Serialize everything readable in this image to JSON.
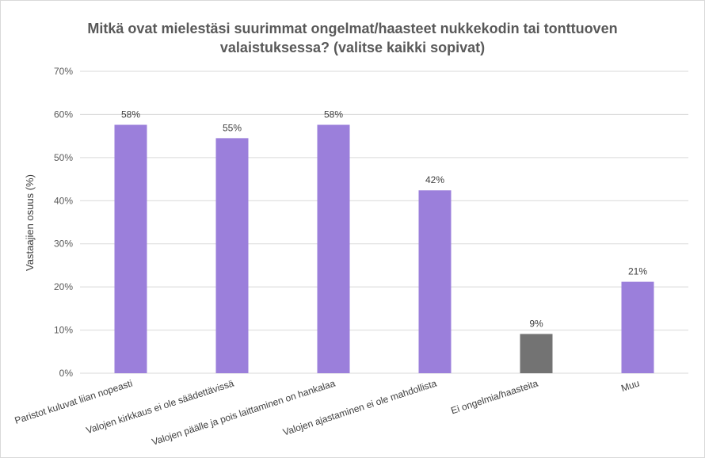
{
  "chart_data": {
    "type": "bar",
    "title_lines": [
      "Mitkä ovat mielestäsi suurimmat ongelmat/haasteet nukkekodin tai tonttuoven",
      "valaistuksessa? (valitse kaikki sopivat)"
    ],
    "xlabel": "",
    "ylabel": "Vastaajien osuus (%)",
    "ylim": [
      0,
      70
    ],
    "yticks": [
      0,
      10,
      20,
      30,
      40,
      50,
      60,
      70
    ],
    "ytick_labels": [
      "0%",
      "10%",
      "20%",
      "30%",
      "40%",
      "50%",
      "60%",
      "70%"
    ],
    "categories": [
      "Paristot kuluvat liian nopeasti",
      "Valojen kirkkaus ei ole säädettävissä",
      "Valojen päälle ja pois laittaminen on hankalaa",
      "Valojen ajastaminen ei ole mahdollista",
      "Ei ongelmia/haasteita",
      "Muu"
    ],
    "values": [
      57.6,
      54.5,
      57.6,
      42.4,
      9.1,
      21.2
    ],
    "data_labels": [
      "58%",
      "55%",
      "58%",
      "42%",
      "9%",
      "21%"
    ],
    "bar_colors": [
      "#9b7fdb",
      "#9b7fdb",
      "#9b7fdb",
      "#9b7fdb",
      "#737373",
      "#9b7fdb"
    ],
    "grid": true,
    "gridline_color": "#d9d9d9",
    "legend": "none"
  }
}
